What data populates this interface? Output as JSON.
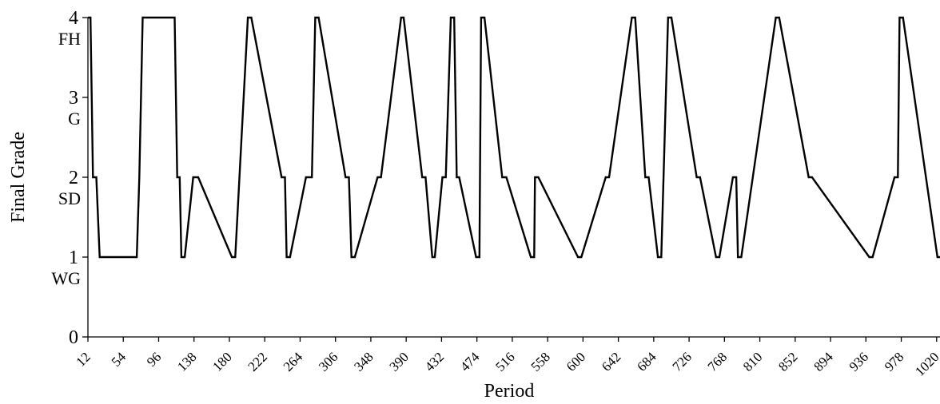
{
  "chart_data": {
    "type": "line",
    "title": "",
    "xlabel": "Period",
    "ylabel": "Final Grade",
    "ylim": [
      0,
      4
    ],
    "xlim": [
      12,
      1024
    ],
    "grid": false,
    "legend": "none",
    "line_color": "#000000",
    "y_ticks": [
      {
        "value": 0,
        "label": "0",
        "sublabel": ""
      },
      {
        "value": 1,
        "label": "1",
        "sublabel": "WG"
      },
      {
        "value": 2,
        "label": "2",
        "sublabel": "SD"
      },
      {
        "value": 3,
        "label": "3",
        "sublabel": "G"
      },
      {
        "value": 4,
        "label": "4",
        "sublabel": "FH"
      }
    ],
    "x_ticks": [
      12,
      54,
      96,
      138,
      180,
      222,
      264,
      306,
      348,
      390,
      432,
      474,
      516,
      558,
      600,
      642,
      684,
      726,
      768,
      810,
      852,
      894,
      936,
      978,
      1020
    ],
    "x_tick_labels": [
      "12",
      "54",
      "96",
      "138",
      "180",
      "222",
      "264",
      "306",
      "348",
      "390",
      "432",
      "474",
      "516",
      "558",
      "600",
      "642",
      "684",
      "726",
      "768",
      "810",
      "852",
      "894",
      "936",
      "978",
      "1020"
    ],
    "series": [
      {
        "x": [
          12,
          15,
          18,
          22,
          26,
          70,
          73,
          77,
          115,
          118,
          121,
          123,
          127,
          137,
          143,
          183,
          187,
          202,
          206,
          242,
          246,
          248,
          252,
          271,
          278,
          282,
          286,
          318,
          322,
          325,
          329,
          356,
          360,
          384,
          387,
          409,
          413,
          421,
          424,
          433,
          437,
          443,
          447,
          450,
          453,
          473,
          477,
          479,
          483,
          504,
          509,
          538,
          542,
          543,
          547,
          594,
          598,
          627,
          631,
          658,
          662,
          674,
          678,
          689,
          693,
          701,
          705,
          735,
          739,
          758,
          762,
          778,
          782,
          784,
          788,
          829,
          833,
          868,
          872,
          940,
          944,
          970,
          974,
          976,
          980,
          1021,
          1024
        ],
        "y": [
          4,
          4,
          2,
          2,
          1,
          1,
          2,
          4,
          4,
          2,
          2,
          1,
          1,
          2,
          2,
          1,
          1,
          4,
          4,
          2,
          2,
          1,
          1,
          2,
          2,
          4,
          4,
          2,
          2,
          1,
          1,
          2,
          2,
          4,
          4,
          2,
          2,
          1,
          1,
          2,
          2,
          4,
          4,
          2,
          2,
          1,
          1,
          4,
          4,
          2,
          2,
          1,
          1,
          2,
          2,
          1,
          1,
          2,
          2,
          4,
          4,
          2,
          2,
          1,
          1,
          4,
          4,
          2,
          2,
          1,
          1,
          2,
          2,
          1,
          1,
          4,
          4,
          2,
          2,
          1,
          1,
          2,
          2,
          4,
          4,
          1,
          1
        ]
      }
    ]
  }
}
